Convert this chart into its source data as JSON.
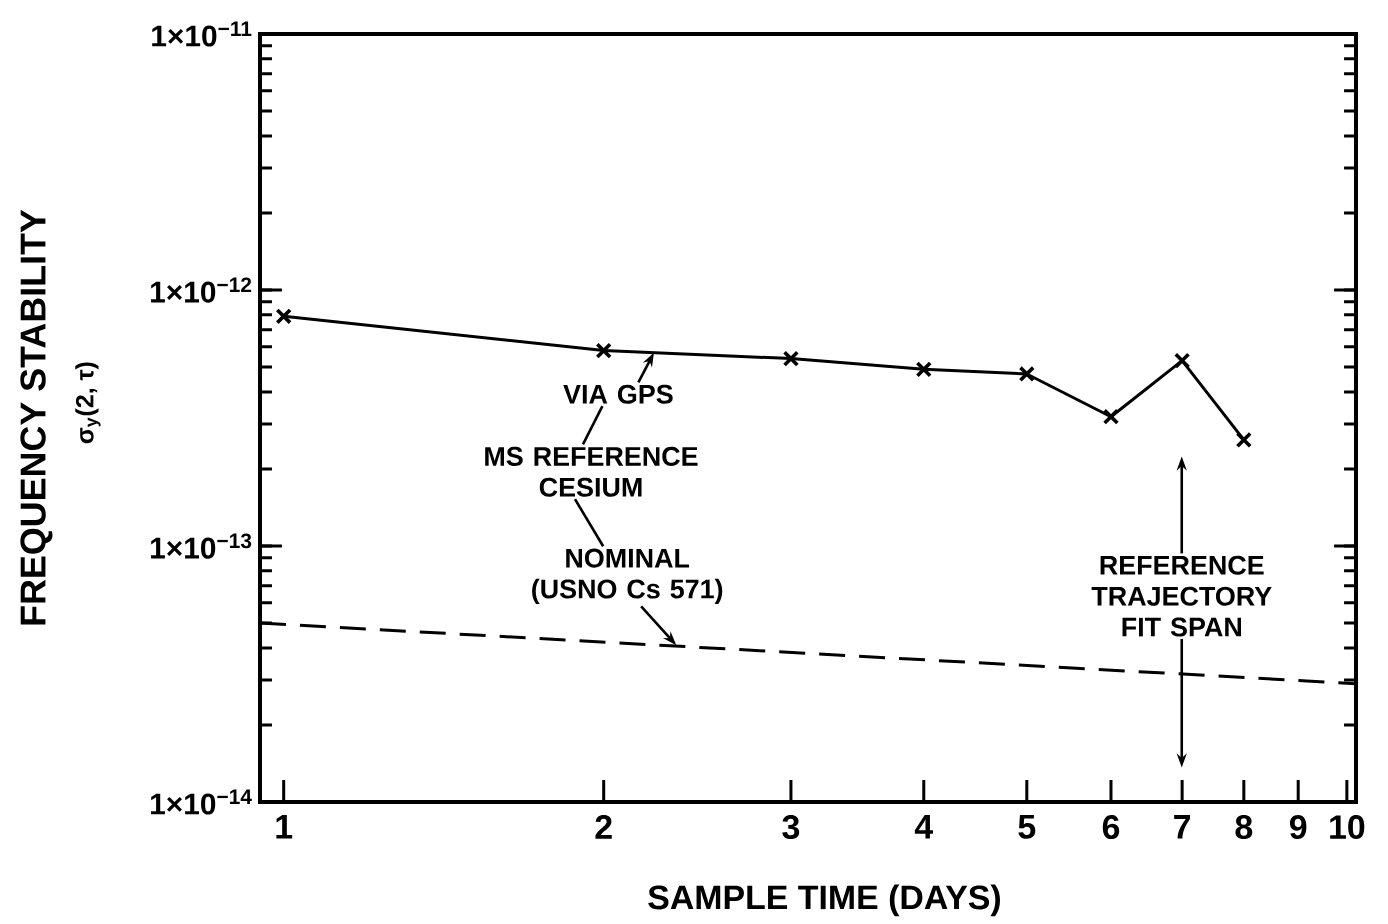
{
  "chart_data": {
    "type": "line",
    "xlabel": "SAMPLE TIME (DAYS)",
    "ylabel": "FREQUENCY STABILITY",
    "log": "xy",
    "xlim": [
      0.95,
      10.2
    ],
    "ylim": [
      1e-14,
      1e-11
    ],
    "xticks": [
      1,
      2,
      3,
      4,
      5,
      6,
      7,
      8,
      9,
      10
    ],
    "yticks": [
      {
        "value": 1e-14,
        "label": "1×10$^{−14}$"
      },
      {
        "value": 1e-13,
        "label": "1×10$^{−13}$"
      },
      {
        "value": 1e-12,
        "label": "1×10$^{−12}$"
      },
      {
        "value": 1e-11,
        "label": "1×10$^{−11}$"
      }
    ],
    "series": [
      {
        "color": "#000000",
        "marker": "cross",
        "line_style": "solid",
        "x": [
          1,
          2,
          3,
          4,
          5,
          6,
          7,
          8
        ],
        "values": [
          7.9e-13,
          5.8e-13,
          5.4e-13,
          4.9e-13,
          4.7e-13,
          3.2e-13,
          5.3e-13,
          2.6e-13
        ]
      },
      {
        "color": "#000000",
        "marker": "none",
        "line_style": "dashed",
        "x": [
          0.95,
          10.2
        ],
        "values": [
          5e-14,
          2.9e-14
        ]
      }
    ],
    "annotations": [
      "σ$_{y}$(2, τ)",
      "MS REFERENCE CESIUM",
      {
        "text": "VIA GPS",
        "x": 2.23,
        "y": 5.7e-13
      },
      {
        "text": "NOMINAL (USNO Cs 571)",
        "x": 2.34,
        "y": 4.1e-14
      },
      "REFERENCE TRAJECTORY FIT SPAN"
    ]
  }
}
